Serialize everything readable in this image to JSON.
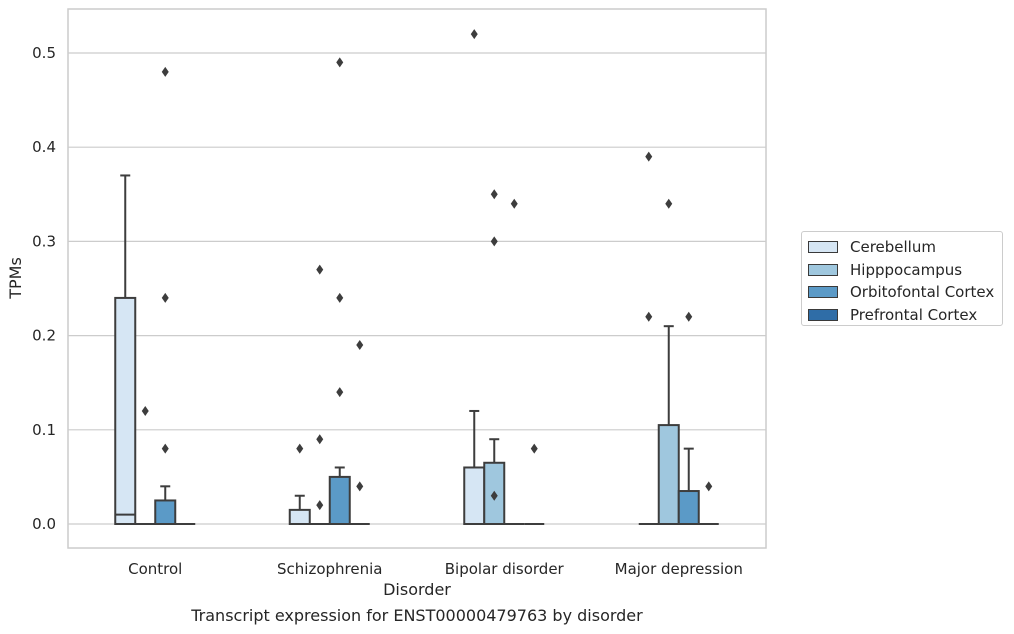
{
  "chart_data": {
    "type": "box",
    "title": "Transcript expression for ENST00000479763 by disorder",
    "xlabel": "Disorder",
    "ylabel": "TPMs",
    "ylim": [
      -0.025,
      0.55
    ],
    "yticks": [
      "0.0",
      "0.1",
      "0.2",
      "0.3",
      "0.4",
      "0.5"
    ],
    "categories": [
      "Control",
      "Schizophrenia",
      "Bipolar disorder",
      "Major depression"
    ],
    "grid": true,
    "legend_position": "right",
    "series": [
      {
        "name": "Cerebellum",
        "color": "#d6e6f4",
        "boxes": [
          {
            "q1": 0.0,
            "median": 0.01,
            "q3": 0.24,
            "whisker_low": 0.0,
            "whisker_high": 0.37,
            "outliers": []
          },
          {
            "q1": 0.0,
            "median": 0.0,
            "q3": 0.015,
            "whisker_low": 0.0,
            "whisker_high": 0.03,
            "outliers": [
              0.08
            ]
          },
          {
            "q1": 0.0,
            "median": 0.0,
            "q3": 0.06,
            "whisker_low": 0.0,
            "whisker_high": 0.12,
            "outliers": [
              0.52
            ]
          },
          {
            "q1": 0.0,
            "median": 0.0,
            "q3": 0.0,
            "whisker_low": 0.0,
            "whisker_high": 0.0,
            "outliers": [
              0.39,
              0.22
            ]
          }
        ]
      },
      {
        "name": "Hipppocampus",
        "color": "#9fc7de",
        "boxes": [
          {
            "q1": 0.0,
            "median": 0.0,
            "q3": 0.0,
            "whisker_low": 0.0,
            "whisker_high": 0.0,
            "outliers": [
              0.12
            ]
          },
          {
            "q1": 0.0,
            "median": 0.0,
            "q3": 0.0,
            "whisker_low": 0.0,
            "whisker_high": 0.0,
            "outliers": [
              0.27,
              0.09,
              0.02
            ]
          },
          {
            "q1": 0.0,
            "median": 0.0,
            "q3": 0.065,
            "whisker_low": 0.0,
            "whisker_high": 0.09,
            "outliers": [
              0.35,
              0.3,
              0.03
            ]
          },
          {
            "q1": 0.0,
            "median": 0.0,
            "q3": 0.105,
            "whisker_low": 0.0,
            "whisker_high": 0.21,
            "outliers": [
              0.34
            ]
          }
        ]
      },
      {
        "name": "Orbitofontal Cortex",
        "color": "#5b9ac7",
        "boxes": [
          {
            "q1": 0.0,
            "median": 0.0,
            "q3": 0.025,
            "whisker_low": 0.0,
            "whisker_high": 0.04,
            "outliers": [
              0.48,
              0.24,
              0.08
            ]
          },
          {
            "q1": 0.0,
            "median": 0.0,
            "q3": 0.05,
            "whisker_low": 0.0,
            "whisker_high": 0.06,
            "outliers": [
              0.49,
              0.24,
              0.14
            ]
          },
          {
            "q1": 0.0,
            "median": 0.0,
            "q3": 0.0,
            "whisker_low": 0.0,
            "whisker_high": 0.0,
            "outliers": [
              0.34
            ]
          },
          {
            "q1": 0.0,
            "median": 0.0,
            "q3": 0.035,
            "whisker_low": 0.0,
            "whisker_high": 0.08,
            "outliers": [
              0.22
            ]
          }
        ]
      },
      {
        "name": "Prefrontal Cortex",
        "color": "#2f6da7",
        "boxes": [
          {
            "q1": 0.0,
            "median": 0.0,
            "q3": 0.0,
            "whisker_low": 0.0,
            "whisker_high": 0.0,
            "outliers": []
          },
          {
            "q1": 0.0,
            "median": 0.0,
            "q3": 0.0,
            "whisker_low": 0.0,
            "whisker_high": 0.0,
            "outliers": [
              0.19,
              0.04
            ]
          },
          {
            "q1": 0.0,
            "median": 0.0,
            "q3": 0.0,
            "whisker_low": 0.0,
            "whisker_high": 0.0,
            "outliers": [
              0.08
            ]
          },
          {
            "q1": 0.0,
            "median": 0.0,
            "q3": 0.0,
            "whisker_low": 0.0,
            "whisker_high": 0.0,
            "outliers": [
              0.04
            ]
          }
        ]
      }
    ]
  }
}
